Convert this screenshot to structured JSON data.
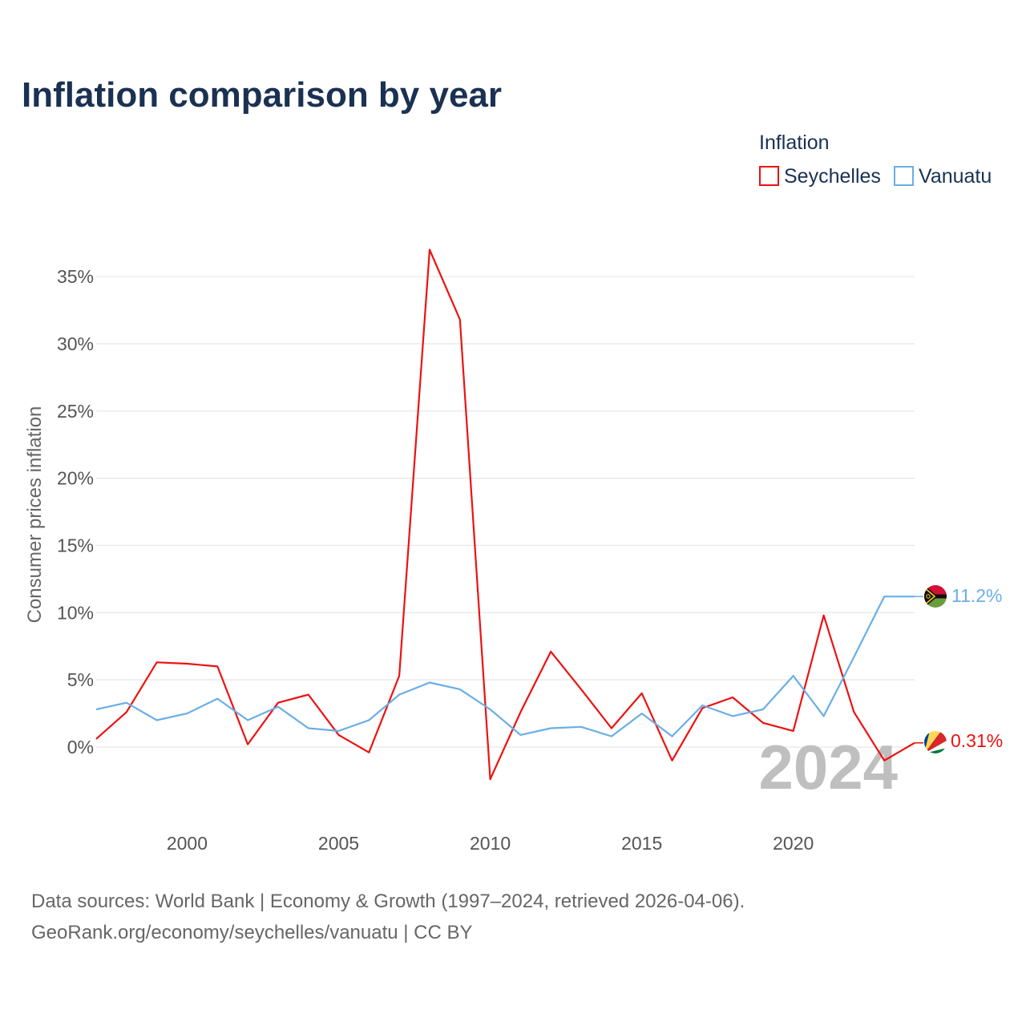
{
  "title": "Inflation comparison by year",
  "legend": {
    "title": "Inflation",
    "placement": "top-right",
    "entries": [
      {
        "name": "Seychelles",
        "color": "#ee1111"
      },
      {
        "name": "Vanuatu",
        "color": "#6aaee6"
      }
    ]
  },
  "year_watermark": "2024",
  "source_lines": [
    "Data sources: World Bank | Economy & Growth (1997–2024, retrieved 2026-04-06).",
    "GeoRank.org/economy/seychelles/vanuatu | CC BY"
  ],
  "chart_data": {
    "type": "line",
    "title": "Inflation comparison by year",
    "xlabel": "",
    "ylabel": "Consumer prices inflation",
    "xlim": [
      1997,
      2024
    ],
    "ylim": [
      -4,
      37
    ],
    "x_ticks": [
      2000,
      2005,
      2010,
      2015,
      2020
    ],
    "y_ticks": [
      0,
      5,
      10,
      15,
      20,
      25,
      30,
      35
    ],
    "y_tick_labels": [
      "0%",
      "5%",
      "10%",
      "15%",
      "20%",
      "25%",
      "30%",
      "35%"
    ],
    "grid": true,
    "x": [
      1997,
      1998,
      1999,
      2000,
      2001,
      2002,
      2003,
      2004,
      2005,
      2006,
      2007,
      2008,
      2009,
      2010,
      2011,
      2012,
      2013,
      2014,
      2015,
      2016,
      2017,
      2018,
      2019,
      2020,
      2021,
      2022,
      2023,
      2024
    ],
    "series": [
      {
        "name": "Seychelles",
        "color": "#ee1111",
        "values": [
          0.6,
          2.6,
          6.3,
          6.2,
          6.0,
          0.2,
          3.3,
          3.9,
          0.9,
          -0.4,
          5.3,
          37.0,
          31.8,
          -2.4,
          2.6,
          7.1,
          4.3,
          1.4,
          4.0,
          -1.0,
          2.9,
          3.7,
          1.8,
          1.2,
          9.8,
          2.6,
          -1.0,
          0.31
        ],
        "end_label": "0.31%"
      },
      {
        "name": "Vanuatu",
        "color": "#6aaee6",
        "values": [
          2.8,
          3.3,
          2.0,
          2.5,
          3.6,
          2.0,
          3.0,
          1.4,
          1.2,
          2.0,
          3.9,
          4.8,
          4.3,
          2.8,
          0.9,
          1.4,
          1.5,
          0.8,
          2.5,
          0.8,
          3.1,
          2.3,
          2.8,
          5.3,
          2.3,
          6.7,
          11.2,
          11.2
        ],
        "end_label": "11.2%"
      }
    ]
  }
}
